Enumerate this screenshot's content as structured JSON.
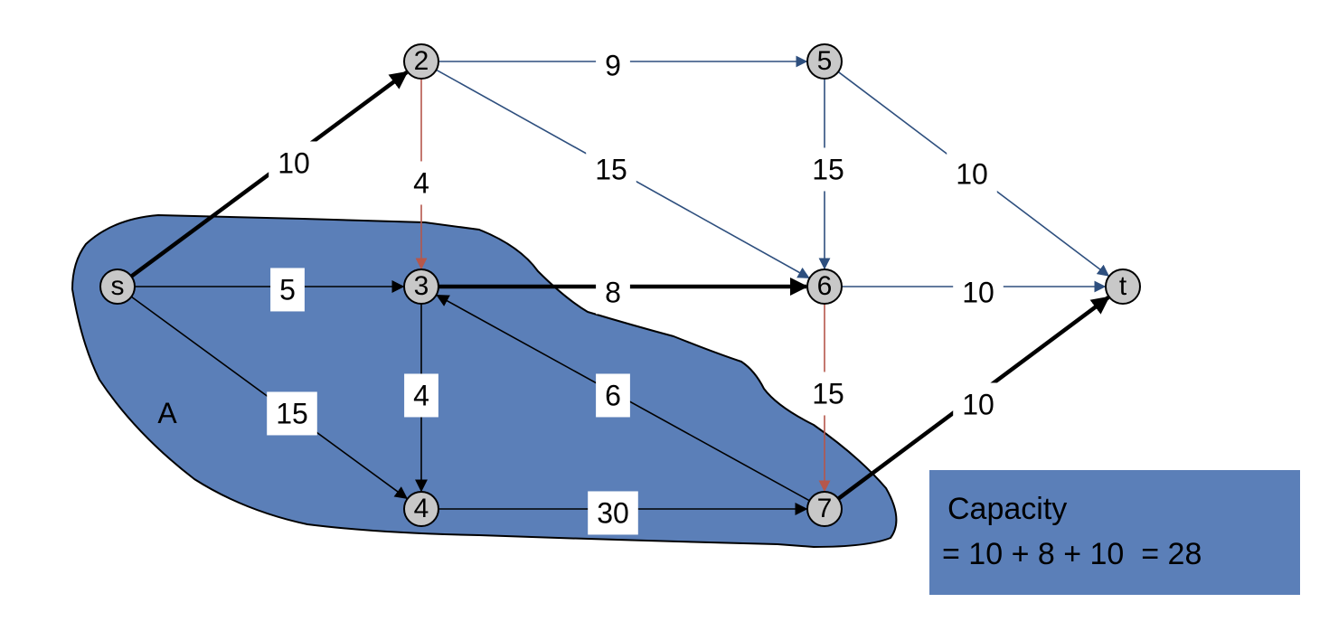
{
  "cut_region_label": "A",
  "capacity_box": {
    "title": "Capacity",
    "formula": "= 10 + 8 + 10  = 28"
  },
  "nodes": [
    {
      "id": "s",
      "label": "s"
    },
    {
      "id": "2",
      "label": "2"
    },
    {
      "id": "3",
      "label": "3"
    },
    {
      "id": "4",
      "label": "4"
    },
    {
      "id": "5",
      "label": "5"
    },
    {
      "id": "6",
      "label": "6"
    },
    {
      "id": "7",
      "label": "7"
    },
    {
      "id": "t",
      "label": "t"
    }
  ],
  "edges": [
    {
      "from": "s",
      "to": "2",
      "capacity": "10",
      "style": "cut"
    },
    {
      "from": "s",
      "to": "3",
      "capacity": "5",
      "style": "black"
    },
    {
      "from": "s",
      "to": "4",
      "capacity": "15",
      "style": "black"
    },
    {
      "from": "2",
      "to": "5",
      "capacity": "9",
      "style": "blue"
    },
    {
      "from": "2",
      "to": "3",
      "capacity": "4",
      "style": "red"
    },
    {
      "from": "2",
      "to": "6",
      "capacity": "15",
      "style": "blue"
    },
    {
      "from": "3",
      "to": "6",
      "capacity": "8",
      "style": "cut"
    },
    {
      "from": "3",
      "to": "4",
      "capacity": "4",
      "style": "black"
    },
    {
      "from": "7",
      "to": "3",
      "capacity": "6",
      "style": "black"
    },
    {
      "from": "4",
      "to": "7",
      "capacity": "30",
      "style": "black"
    },
    {
      "from": "5",
      "to": "6",
      "capacity": "15",
      "style": "blue"
    },
    {
      "from": "5",
      "to": "t",
      "capacity": "10",
      "style": "blue"
    },
    {
      "from": "6",
      "to": "t",
      "capacity": "10",
      "style": "blue"
    },
    {
      "from": "6",
      "to": "7",
      "capacity": "15",
      "style": "red"
    },
    {
      "from": "7",
      "to": "t",
      "capacity": "10",
      "style": "cut"
    }
  ],
  "colors": {
    "region_fill": "#5b7fb8",
    "blue_edge": "#2e4f7e",
    "red_edge": "#b5574b",
    "black_edge": "#000000",
    "node_fill": "#c8c8c8"
  }
}
